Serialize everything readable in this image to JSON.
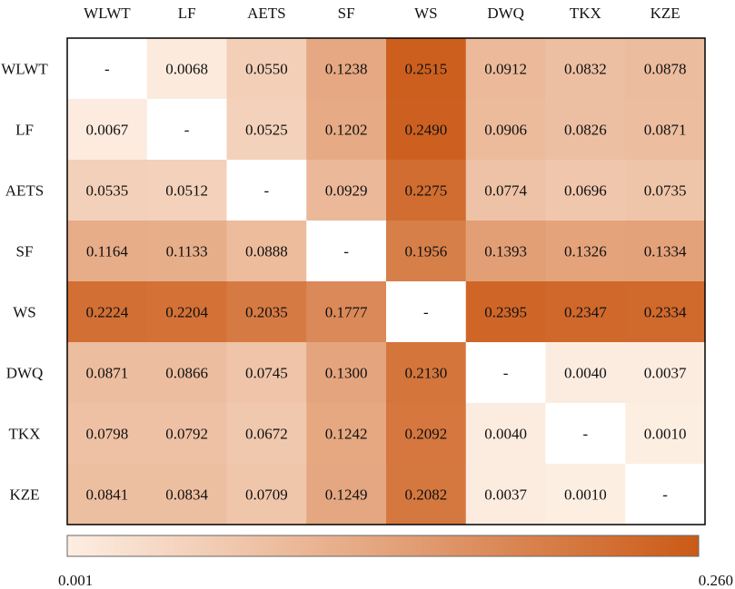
{
  "chart_data": {
    "type": "heatmap",
    "labels": [
      "WLWT",
      "LF",
      "AETS",
      "SF",
      "WS",
      "DWQ",
      "TKX",
      "KZE"
    ],
    "matrix": [
      [
        "-",
        "0.0068",
        "0.0550",
        "0.1238",
        "0.2515",
        "0.0912",
        "0.0832",
        "0.0878"
      ],
      [
        "0.0067",
        "-",
        "0.0525",
        "0.1202",
        "0.2490",
        "0.0906",
        "0.0826",
        "0.0871"
      ],
      [
        "0.0535",
        "0.0512",
        "-",
        "0.0929",
        "0.2275",
        "0.0774",
        "0.0696",
        "0.0735"
      ],
      [
        "0.1164",
        "0.1133",
        "0.0888",
        "-",
        "0.1956",
        "0.1393",
        "0.1326",
        "0.1334"
      ],
      [
        "0.2224",
        "0.2204",
        "0.2035",
        "0.1777",
        "-",
        "0.2395",
        "0.2347",
        "0.2334"
      ],
      [
        "0.0871",
        "0.0866",
        "0.0745",
        "0.1300",
        "0.2130",
        "-",
        "0.0040",
        "0.0037"
      ],
      [
        "0.0798",
        "0.0792",
        "0.0672",
        "0.1242",
        "0.2092",
        "0.0040",
        "-",
        "0.0010"
      ],
      [
        "0.0841",
        "0.0834",
        "0.0709",
        "0.1249",
        "0.2082",
        "0.0037",
        "0.0010",
        "-"
      ]
    ],
    "colorbar": {
      "min": 0.001,
      "max": 0.26,
      "min_label": "0.001",
      "max_label": "0.260",
      "low_color": "#fdeee2",
      "high_color": "#cb5a17"
    },
    "diagonal_color": "#ffffff"
  }
}
